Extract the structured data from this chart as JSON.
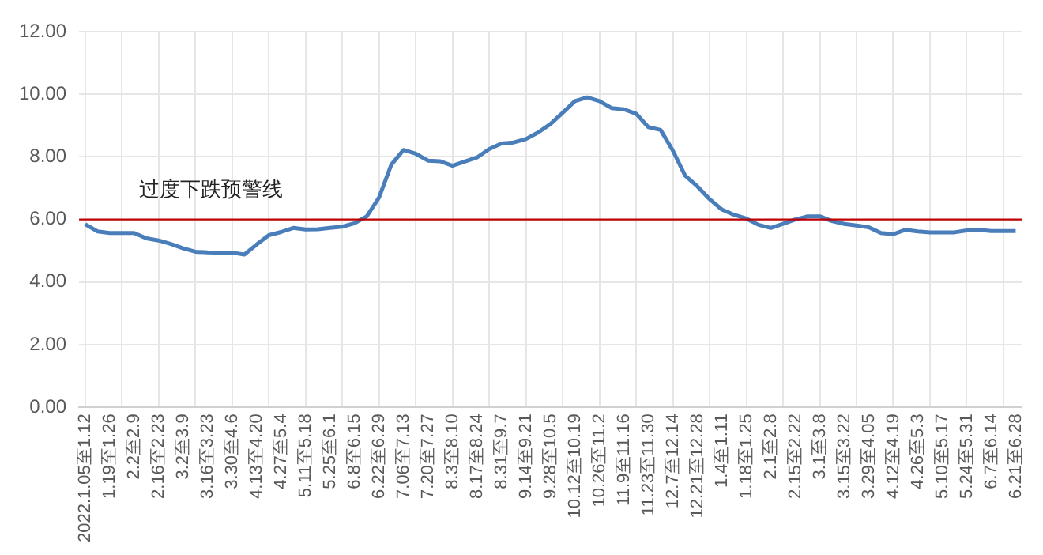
{
  "chart_data": {
    "type": "line",
    "categories": [
      "2022.1.05至1.12",
      null,
      "1.19至1.26",
      null,
      "2.2至2.9",
      null,
      "2.16至2.23",
      null,
      "3.2至3.9",
      null,
      "3.16至3.23",
      null,
      "3.30至4.6",
      null,
      "4.13至4.20",
      null,
      "4.27至5.4",
      null,
      "5.11至5.18",
      null,
      "5.25至6.1",
      null,
      "6.8至6.15",
      null,
      "6.22至6.29",
      null,
      "7.06至7.13",
      null,
      "7.20至7.27",
      null,
      "8.3至8.10",
      null,
      "8.17至8.24",
      null,
      "8.31至9.7",
      null,
      "9.14至9.21",
      null,
      "9.28至10.5",
      null,
      "10.12至10.19",
      null,
      "10.26至11.2",
      null,
      "11.9至11.16",
      null,
      "11.23至11.30",
      null,
      "12.7至12.14",
      null,
      "12.21至12.28",
      null,
      "1.4至1.11",
      null,
      "1.18至1.25",
      null,
      "2.1至2.8",
      null,
      "2.15至2.22",
      null,
      "3.1至3.8",
      null,
      "3.15至3.22",
      null,
      "3.29至4.05",
      null,
      "4.12至4.19",
      null,
      "4.26至5.3",
      null,
      "5.10至5.17",
      null,
      "5.24至5.31",
      null,
      "6.7至6.14",
      null,
      "6.21至6.28"
    ],
    "series": [
      {
        "color": "#4a7ebb",
        "values": [
          5.85,
          5.62,
          5.57,
          5.57,
          5.57,
          5.4,
          5.33,
          5.22,
          5.08,
          4.97,
          4.95,
          4.94,
          4.94,
          4.88,
          5.2,
          5.5,
          5.6,
          5.73,
          5.68,
          5.69,
          5.73,
          5.77,
          5.88,
          6.1,
          6.7,
          7.75,
          8.22,
          8.1,
          7.88,
          7.86,
          7.72,
          7.85,
          7.98,
          8.25,
          8.43,
          8.46,
          8.57,
          8.78,
          9.05,
          9.41,
          9.78,
          9.9,
          9.78,
          9.56,
          9.52,
          9.38,
          8.95,
          8.86,
          8.2,
          7.4,
          7.06,
          6.65,
          6.32,
          6.15,
          6.03,
          5.83,
          5.73,
          5.86,
          6.0,
          6.1,
          6.1,
          5.95,
          5.86,
          5.81,
          5.75,
          5.57,
          5.53,
          5.67,
          5.62,
          5.59,
          5.59,
          5.59,
          5.65,
          5.67,
          5.63,
          5.63,
          5.63
        ]
      }
    ],
    "ylim": [
      0,
      12
    ],
    "yticks": [
      {
        "value": 0,
        "label": "0.00"
      },
      {
        "value": 2,
        "label": "2.00"
      },
      {
        "value": 4,
        "label": "4.00"
      },
      {
        "value": 6,
        "label": "6.00"
      },
      {
        "value": 8,
        "label": "8.00"
      },
      {
        "value": 10,
        "label": "10.00"
      },
      {
        "value": 12,
        "label": "12.00"
      }
    ],
    "ref_lines": [
      {
        "axis": "y",
        "value": 6,
        "label": "过度下跌预警线",
        "color": "#c00000"
      }
    ],
    "grid": true,
    "legend": false,
    "marker": "none",
    "line_style": "solid"
  }
}
